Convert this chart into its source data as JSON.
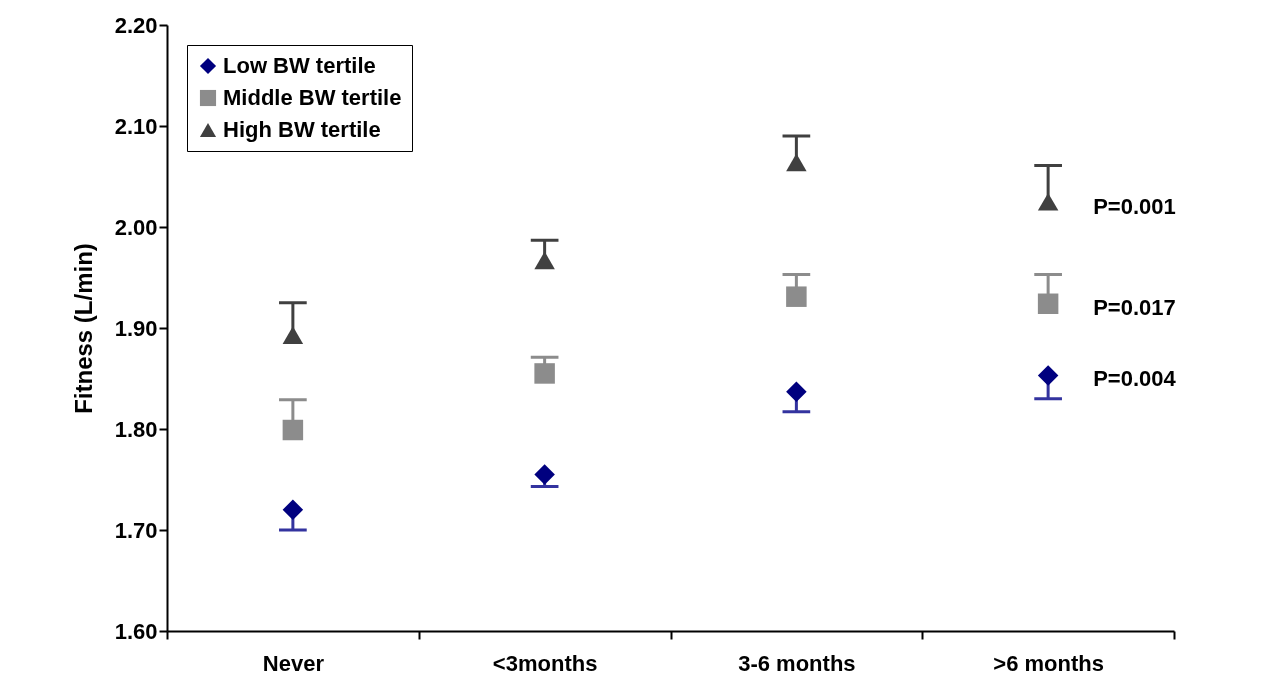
{
  "chart_data": {
    "type": "scatter",
    "ylabel": "Fitness (L/min)",
    "categories": [
      "Never",
      "<3months",
      "3-6 months",
      ">6 months"
    ],
    "series": [
      {
        "name": "Low BW tertile",
        "color": "#00007f",
        "marker": "diamond",
        "values": [
          1.72,
          1.755,
          1.837,
          1.853
        ],
        "errors": [
          [
            1.7,
            1.72
          ],
          [
            1.743,
            1.755
          ],
          [
            1.817,
            1.837
          ],
          [
            1.83,
            1.853
          ]
        ]
      },
      {
        "name": "Middle BW tertile",
        "color": "#8c8c8c",
        "marker": "square",
        "values": [
          1.799,
          1.855,
          1.931,
          1.924
        ],
        "errors": [
          [
            1.799,
            1.829
          ],
          [
            1.855,
            1.871
          ],
          [
            1.931,
            1.953
          ],
          [
            1.924,
            1.953
          ]
        ]
      },
      {
        "name": "High BW tertile",
        "color": "#404040",
        "marker": "triangle",
        "values": [
          1.893,
          1.967,
          2.064,
          2.025
        ],
        "errors": [
          [
            1.893,
            1.925
          ],
          [
            1.967,
            1.987
          ],
          [
            2.064,
            2.09
          ],
          [
            2.025,
            2.061
          ]
        ]
      }
    ],
    "ylim": [
      1.6,
      2.2
    ],
    "yticks": [
      {
        "value": 1.6,
        "label": "1.60"
      },
      {
        "value": 1.7,
        "label": "1.70"
      },
      {
        "value": 1.8,
        "label": "1.80"
      },
      {
        "value": 1.9,
        "label": "1.90"
      },
      {
        "value": 2.0,
        "label": "2.00"
      },
      {
        "value": 2.1,
        "label": "2.10"
      },
      {
        "value": 2.2,
        "label": "2.20"
      }
    ],
    "grid": false,
    "legend": "top left",
    "annotations": [
      {
        "text": "P=0.001",
        "x": ">6 months",
        "y": 2.02
      },
      {
        "text": "P=0.017",
        "x": ">6 months",
        "y": 1.92
      },
      {
        "text": "P=0.004",
        "x": ">6 months",
        "y": 1.85
      }
    ]
  }
}
